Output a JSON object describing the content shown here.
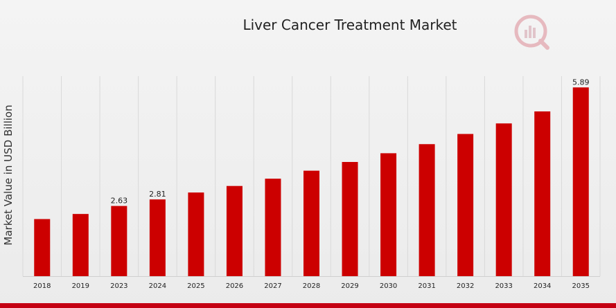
{
  "chart_data": {
    "type": "bar",
    "title": "Liver Cancer Treatment Market",
    "xlabel": "",
    "ylabel": "Market Value in USD Billion",
    "categories": [
      "2018",
      "2019",
      "2023",
      "2024",
      "2025",
      "2026",
      "2027",
      "2028",
      "2029",
      "2030",
      "2031",
      "2032",
      "2033",
      "2034",
      "2035"
    ],
    "values": [
      2.27,
      2.41,
      2.63,
      2.81,
      3.0,
      3.18,
      3.38,
      3.6,
      3.84,
      4.08,
      4.33,
      4.61,
      4.9,
      5.23,
      5.89
    ],
    "data_labels": {
      "2023": "2.63",
      "2024": "2.81",
      "2035": "5.89"
    },
    "ylim": [
      0.7,
      6.2
    ],
    "grid": "vertical",
    "bar_color": "#cc0000",
    "accent_color": "#c40012",
    "legend": "none"
  }
}
